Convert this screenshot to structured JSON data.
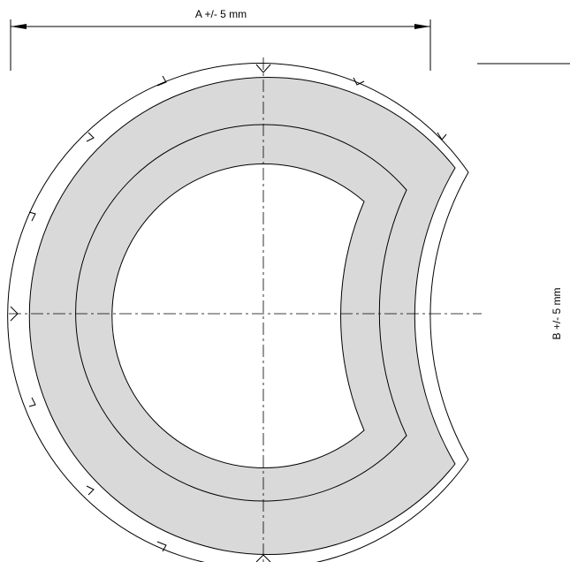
{
  "dimensions": {
    "a": "A +/- 5 mm",
    "b": "B +/- 5 mm"
  }
}
